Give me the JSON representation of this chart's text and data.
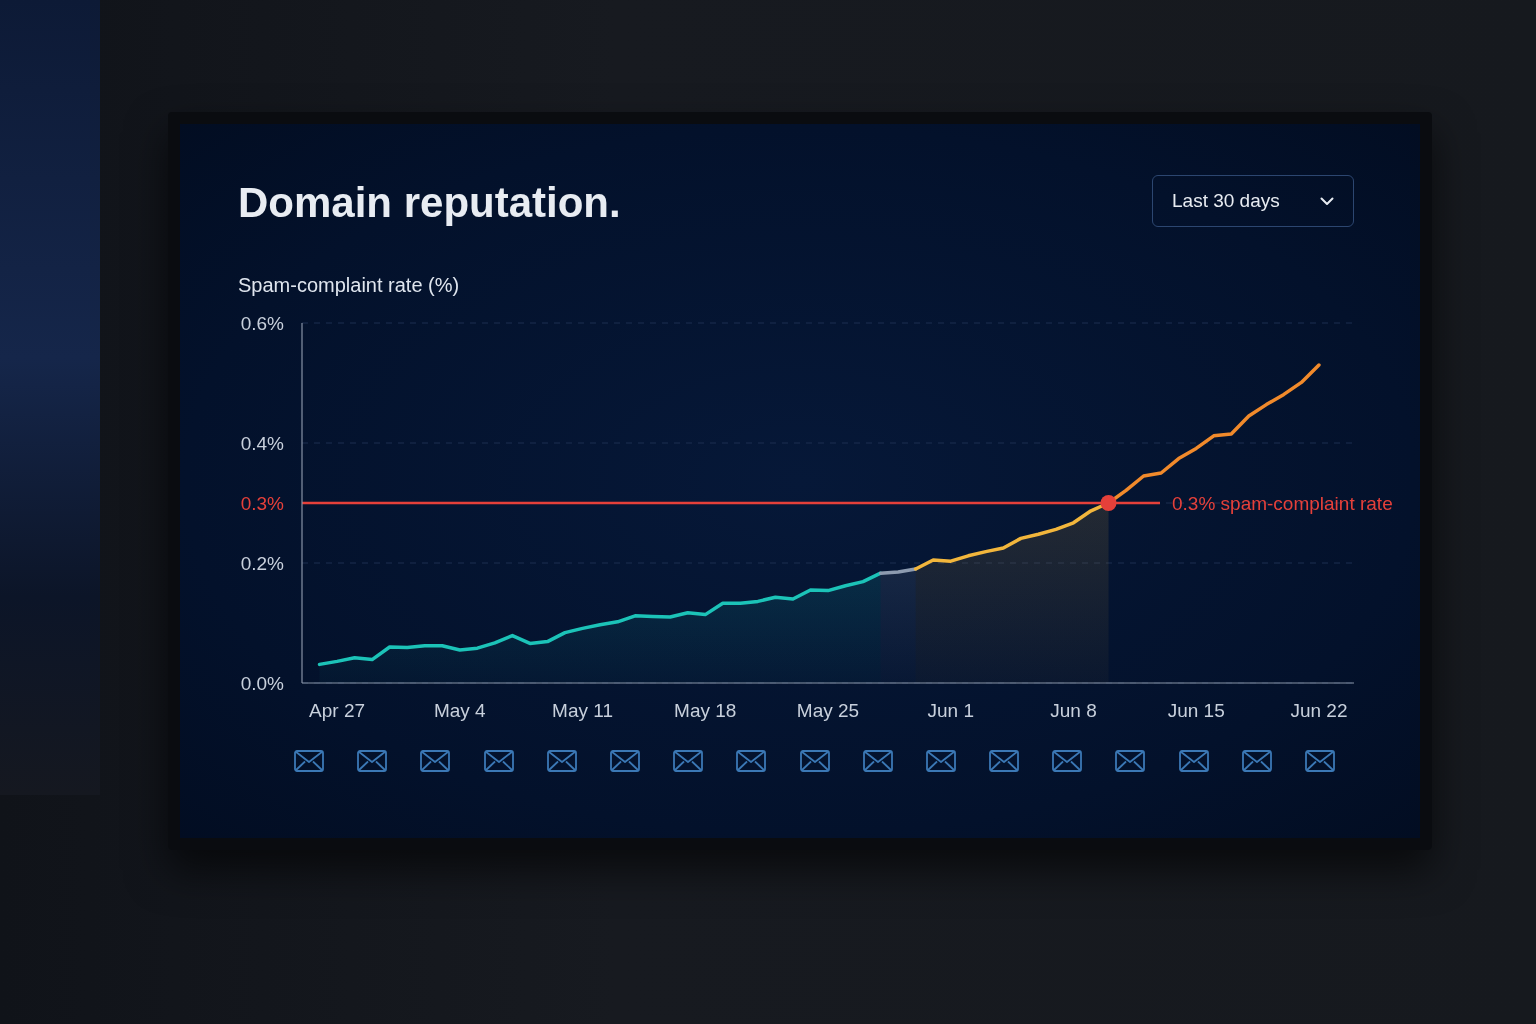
{
  "chart_data": {
    "type": "line",
    "title": "Domain reputation.",
    "ylabel": "Spam-complaint rate (%)",
    "annotations": [
      "Last 30 days"
    ],
    "xlim": [
      "--04-25",
      "--06-24"
    ],
    "xticks": [
      {
        "value": "--04-27",
        "label": "Apr 27"
      },
      {
        "value": "--05-04",
        "label": "May 4"
      },
      {
        "value": "--05-11",
        "label": "May 11"
      },
      {
        "value": "--05-18",
        "label": "May 18"
      },
      {
        "value": "--05-25",
        "label": "May 25"
      },
      {
        "value": "--06-01",
        "label": "Jun 1"
      },
      {
        "value": "--06-08",
        "label": "Jun 8"
      },
      {
        "value": "--06-15",
        "label": "Jun 15"
      },
      {
        "value": "--06-22",
        "label": "Jun 22"
      }
    ],
    "ylim": [
      0,
      0.6
    ],
    "yticks": [
      {
        "value": 0,
        "label": "0.0%"
      },
      {
        "value": 0.2,
        "label": "0.2%"
      },
      {
        "value": 0.3,
        "label": "0.3%"
      },
      {
        "value": 0.4,
        "label": "0.4%"
      },
      {
        "value": 0.6,
        "label": "0.6%"
      }
    ],
    "grid": "y",
    "ref_lines": [
      {
        "axis": "y",
        "value": 0.3,
        "label": "0.3% spam-complaint rate",
        "color": "#e5403a"
      }
    ],
    "series": [
      {
        "type": "area",
        "color": "#1cc3b8",
        "x": [
          "--04-26",
          "--04-27",
          "--04-28",
          "--04-29",
          "--04-30",
          "--05-01",
          "--05-02",
          "--05-03",
          "--05-04",
          "--05-05",
          "--05-06",
          "--05-07",
          "--05-08",
          "--05-09",
          "--05-10",
          "--05-11",
          "--05-12",
          "--05-13",
          "--05-14",
          "--05-15",
          "--05-16",
          "--05-17",
          "--05-18",
          "--05-19",
          "--05-20",
          "--05-21",
          "--05-22",
          "--05-23",
          "--05-24",
          "--05-25",
          "--05-26",
          "--05-27",
          "--05-28"
        ],
        "values": [
          0.031,
          0.036,
          0.042,
          0.039,
          0.06,
          0.059,
          0.062,
          0.062,
          0.055,
          0.058,
          0.067,
          0.079,
          0.066,
          0.069,
          0.084,
          0.091,
          0.097,
          0.102,
          0.112,
          0.111,
          0.11,
          0.117,
          0.114,
          0.133,
          0.133,
          0.136,
          0.143,
          0.14,
          0.155,
          0.154,
          0.162,
          0.169,
          0.183
        ]
      },
      {
        "type": "area",
        "color": "#8d9bb0",
        "x": [
          "--05-28",
          "--05-29",
          "--05-30"
        ],
        "values": [
          0.183,
          0.185,
          0.19
        ]
      },
      {
        "type": "area",
        "color": "#f2b63c",
        "x": [
          "--05-30",
          "--05-31",
          "--06-01",
          "--06-02",
          "--06-03",
          "--06-04",
          "--06-05",
          "--06-06",
          "--06-07",
          "--06-08",
          "--06-09",
          "--06-10"
        ],
        "values": [
          0.19,
          0.205,
          0.203,
          0.212,
          0.219,
          0.225,
          0.241,
          0.248,
          0.256,
          0.267,
          0.287,
          0.3
        ]
      },
      {
        "color": "#f18a2b",
        "x": [
          "--06-10",
          "--06-11",
          "--06-12",
          "--06-13",
          "--06-14",
          "--06-15",
          "--06-16",
          "--06-17",
          "--06-18",
          "--06-19",
          "--06-20",
          "--06-21",
          "--06-22"
        ],
        "values": [
          0.3,
          0.321,
          0.345,
          0.35,
          0.374,
          0.391,
          0.412,
          0.415,
          0.445,
          0.464,
          0.481,
          0.501,
          0.53
        ]
      },
      {
        "type": "scatter",
        "marker": "circle",
        "color": "#e5403a",
        "x": [
          "--06-10"
        ],
        "values": [
          0.3
        ]
      }
    ]
  }
}
